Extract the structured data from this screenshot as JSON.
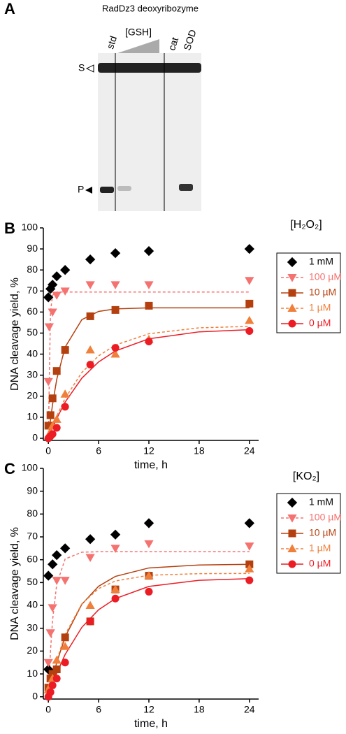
{
  "panel_a": {
    "label": "A",
    "title": "RadDz3 deoxyribozyme",
    "lanes": [
      "std",
      "[GSH]",
      "cat",
      "SOD"
    ],
    "markers": [
      "S",
      "P"
    ]
  },
  "chart_data": [
    {
      "type": "scatter",
      "label": "B",
      "legend_title": "[H₂O₂]",
      "xlabel": "time, h",
      "ylabel": "DNA cleavage yield, %",
      "xlim": [
        -0.6,
        25.1
      ],
      "ylim": [
        -1,
        100
      ],
      "xticks": [
        0,
        6,
        12,
        18,
        24
      ],
      "yticks": [
        0,
        10,
        20,
        30,
        40,
        50,
        60,
        70,
        80,
        90,
        100
      ],
      "fit_x": [
        0,
        0.25,
        0.5,
        1,
        2,
        4,
        6,
        8,
        12,
        18,
        24
      ],
      "series": [
        {
          "name": "1 mM",
          "color": "#000000",
          "marker": "diamond",
          "line": "none",
          "x": [
            0,
            0.25,
            0.5,
            1,
            2,
            5,
            8,
            12,
            24
          ],
          "values": [
            67,
            71,
            73,
            77,
            80,
            85,
            88,
            89,
            90
          ]
        },
        {
          "name": "100 µM",
          "color": "#f4726f",
          "marker": "triangle-down",
          "line": "dashed",
          "x": [
            0,
            0.1,
            0.5,
            1,
            2,
            5,
            8,
            12,
            24
          ],
          "values": [
            27,
            53,
            60,
            68,
            70,
            73,
            73,
            73,
            75
          ],
          "fit": [
            0,
            60,
            68,
            69.5,
            69.5,
            69.5,
            69.5,
            69.5,
            69.5,
            69.5,
            69.5
          ]
        },
        {
          "name": "10 µM",
          "color": "#b5400f",
          "marker": "square",
          "line": "solid",
          "x": [
            0,
            0.25,
            0.5,
            1,
            2,
            5,
            8,
            12,
            24
          ],
          "values": [
            6,
            11,
            19,
            32,
            42,
            58,
            61,
            63,
            64
          ],
          "fit": [
            0,
            8.6,
            16.1,
            28,
            43.3,
            56.4,
            60.3,
            61.5,
            62,
            62,
            62
          ]
        },
        {
          "name": "1 µM",
          "color": "#f07f3a",
          "marker": "triangle-up",
          "line": "dashed",
          "x": [
            0,
            0.25,
            0.5,
            1,
            2,
            5,
            8,
            12,
            24
          ],
          "values": [
            1,
            3,
            6,
            9,
            21,
            42,
            40,
            47,
            56
          ],
          "fit": [
            0,
            2.9,
            5.6,
            10.6,
            19,
            31.3,
            39.2,
            44.3,
            49.7,
            52.5,
            53.2
          ]
        },
        {
          "name": "0 µM",
          "color": "#ec1c24",
          "marker": "circle",
          "line": "solid",
          "x": [
            0,
            0.25,
            0.5,
            1,
            2,
            5,
            8,
            12,
            24
          ],
          "values": [
            0,
            1,
            2,
            5,
            15,
            35,
            43,
            46,
            51
          ],
          "fit": [
            0,
            2.5,
            4.9,
            9.4,
            17.2,
            28.6,
            36.3,
            41.5,
            47.3,
            50.6,
            51.6
          ]
        }
      ]
    },
    {
      "type": "scatter",
      "label": "C",
      "legend_title": "[KO₂]",
      "xlabel": "time, h",
      "ylabel": "DNA cleavage yield, %",
      "xlim": [
        -0.6,
        25.1
      ],
      "ylim": [
        -1,
        100
      ],
      "xticks": [
        0,
        6,
        12,
        18,
        24
      ],
      "yticks": [
        0,
        10,
        20,
        30,
        40,
        50,
        60,
        70,
        80,
        90,
        100
      ],
      "fit_x": [
        0,
        0.25,
        0.5,
        1,
        2,
        4,
        6,
        8,
        12,
        18,
        24
      ],
      "series": [
        {
          "name": "1 mM",
          "color": "#000000",
          "marker": "diamond",
          "line": "none",
          "x": [
            0,
            0,
            0.5,
            1,
            2,
            5,
            8,
            12,
            24
          ],
          "values": [
            12,
            53,
            58,
            62,
            65,
            69,
            71,
            76,
            76
          ]
        },
        {
          "name": "100 µM",
          "color": "#f4726f",
          "marker": "triangle-down",
          "line": "dashed",
          "x": [
            0,
            0.25,
            0.5,
            1,
            2,
            5,
            8,
            12,
            24
          ],
          "values": [
            15,
            28,
            39,
            51,
            51,
            61,
            65,
            67,
            66
          ],
          "fit": [
            0,
            19.9,
            33.5,
            49.3,
            60.3,
            63.3,
            63.5,
            63.5,
            63.5,
            63.5,
            63.5
          ]
        },
        {
          "name": "10 µM",
          "color": "#b5400f",
          "marker": "square",
          "line": "solid",
          "x": [
            0,
            0.25,
            0.5,
            1,
            2,
            5,
            8,
            12,
            24
          ],
          "values": [
            4,
            8,
            10,
            12,
            26,
            33,
            47,
            53,
            58
          ],
          "fit": [
            0,
            4.2,
            8.1,
            15,
            26.2,
            40.5,
            48.4,
            52.7,
            56.4,
            57.7,
            58
          ]
        },
        {
          "name": "1 µM",
          "color": "#f07f3a",
          "marker": "triangle-up",
          "line": "dashed",
          "x": [
            0,
            0.25,
            0.5,
            1,
            2,
            5,
            8,
            12,
            24
          ],
          "values": [
            3,
            5,
            8,
            16,
            22,
            40,
            47,
            53,
            56
          ],
          "fit": [
            0,
            4.5,
            8.7,
            15.9,
            27.2,
            40.7,
            47.4,
            50.7,
            53.2,
            53.9,
            54
          ]
        },
        {
          "name": "0 µM",
          "color": "#ec1c24",
          "marker": "circle",
          "line": "solid",
          "x": [
            0,
            0.25,
            0.5,
            1,
            2,
            5,
            8,
            12,
            24
          ],
          "values": [
            0,
            2,
            5,
            8,
            15,
            33,
            43,
            46,
            51
          ],
          "fit": [
            0,
            2.8,
            5.4,
            10.3,
            18.5,
            30.4,
            38.1,
            43,
            48.3,
            51,
            51.7
          ]
        }
      ]
    }
  ]
}
